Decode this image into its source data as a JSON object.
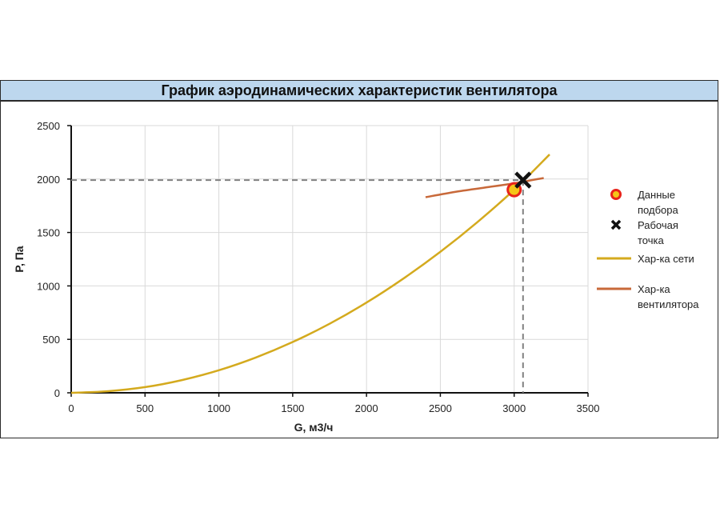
{
  "chart_data": {
    "type": "line",
    "title": "График аэродинамических характеристик вентилятора",
    "xlabel": "G, м3/ч",
    "ylabel": "P, Па",
    "xlim": [
      0,
      3500
    ],
    "ylim": [
      0,
      2500
    ],
    "x_ticks": [
      0,
      500,
      1000,
      1500,
      2000,
      2500,
      3000,
      3500
    ],
    "y_ticks": [
      0,
      500,
      1000,
      1500,
      2000,
      2500
    ],
    "grid": true,
    "legend_position": "right",
    "series": [
      {
        "name": "Данные подбора",
        "kind": "point",
        "color": "#e8231a",
        "fill": "#f5c518",
        "points": [
          [
            3000,
            1900
          ]
        ]
      },
      {
        "name": "Рабочая точка",
        "kind": "point",
        "color": "#111111",
        "points": [
          [
            3060,
            1990
          ]
        ]
      },
      {
        "name": "Хар-ка сети",
        "kind": "line",
        "color": "#d4aa1e",
        "points": [
          [
            0,
            0
          ],
          [
            250,
            15
          ],
          [
            500,
            53
          ],
          [
            750,
            119
          ],
          [
            1000,
            211
          ],
          [
            1250,
            330
          ],
          [
            1500,
            475
          ],
          [
            1750,
            646
          ],
          [
            2000,
            844
          ],
          [
            2250,
            1069
          ],
          [
            2500,
            1319
          ],
          [
            2750,
            1596
          ],
          [
            3000,
            1900
          ],
          [
            3240,
            2230
          ]
        ]
      },
      {
        "name": "Хар-ка вентилятора",
        "kind": "line",
        "color": "#c8693a",
        "points": [
          [
            2400,
            1830
          ],
          [
            2600,
            1880
          ],
          [
            2800,
            1920
          ],
          [
            3000,
            1960
          ],
          [
            3200,
            2010
          ]
        ]
      }
    ],
    "reference_lines": {
      "x": 3060,
      "y": 1990,
      "style": "dashed",
      "color": "#808080"
    }
  },
  "legend": [
    {
      "lines": [
        "Данные",
        "подбора"
      ],
      "marker": "circle"
    },
    {
      "lines": [
        "Рабочая",
        "точка"
      ],
      "marker": "cross"
    },
    {
      "lines": [
        "Хар-ка сети"
      ],
      "marker": "line",
      "color": "#d4aa1e"
    },
    {
      "lines": [
        "Хар-ка",
        "вентилятора"
      ],
      "marker": "line",
      "color": "#c8693a"
    }
  ]
}
